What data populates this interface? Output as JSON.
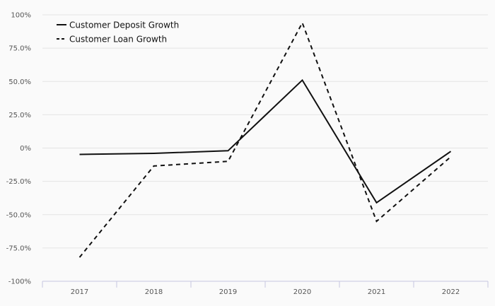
{
  "chart_data": {
    "type": "line",
    "title": "",
    "xlabel": "",
    "ylabel": "",
    "categories": [
      "2017",
      "2018",
      "2019",
      "2020",
      "2021",
      "2022"
    ],
    "ylim": [
      -100,
      100
    ],
    "yticks": [
      100,
      75,
      50,
      25,
      0,
      -25,
      -50,
      -75,
      -100
    ],
    "ytick_labels": [
      "100%",
      "75.0%",
      "50.0%",
      "25.0%",
      "0%",
      "-25.0%",
      "-50.0%",
      "-75.0%",
      "-100%"
    ],
    "grid": true,
    "legend_position": "top-left",
    "series": [
      {
        "name": "Customer Deposit Growth",
        "values": [
          -4.8,
          -4.0,
          -2.0,
          51.0,
          -41.0,
          -2.5
        ],
        "line_style": "solid",
        "color": "#111111"
      },
      {
        "name": "Customer Loan Growth",
        "values": [
          -82.0,
          -13.5,
          -10.0,
          94.0,
          -55.0,
          -6.5
        ],
        "line_style": "dashed",
        "color": "#111111"
      }
    ]
  }
}
